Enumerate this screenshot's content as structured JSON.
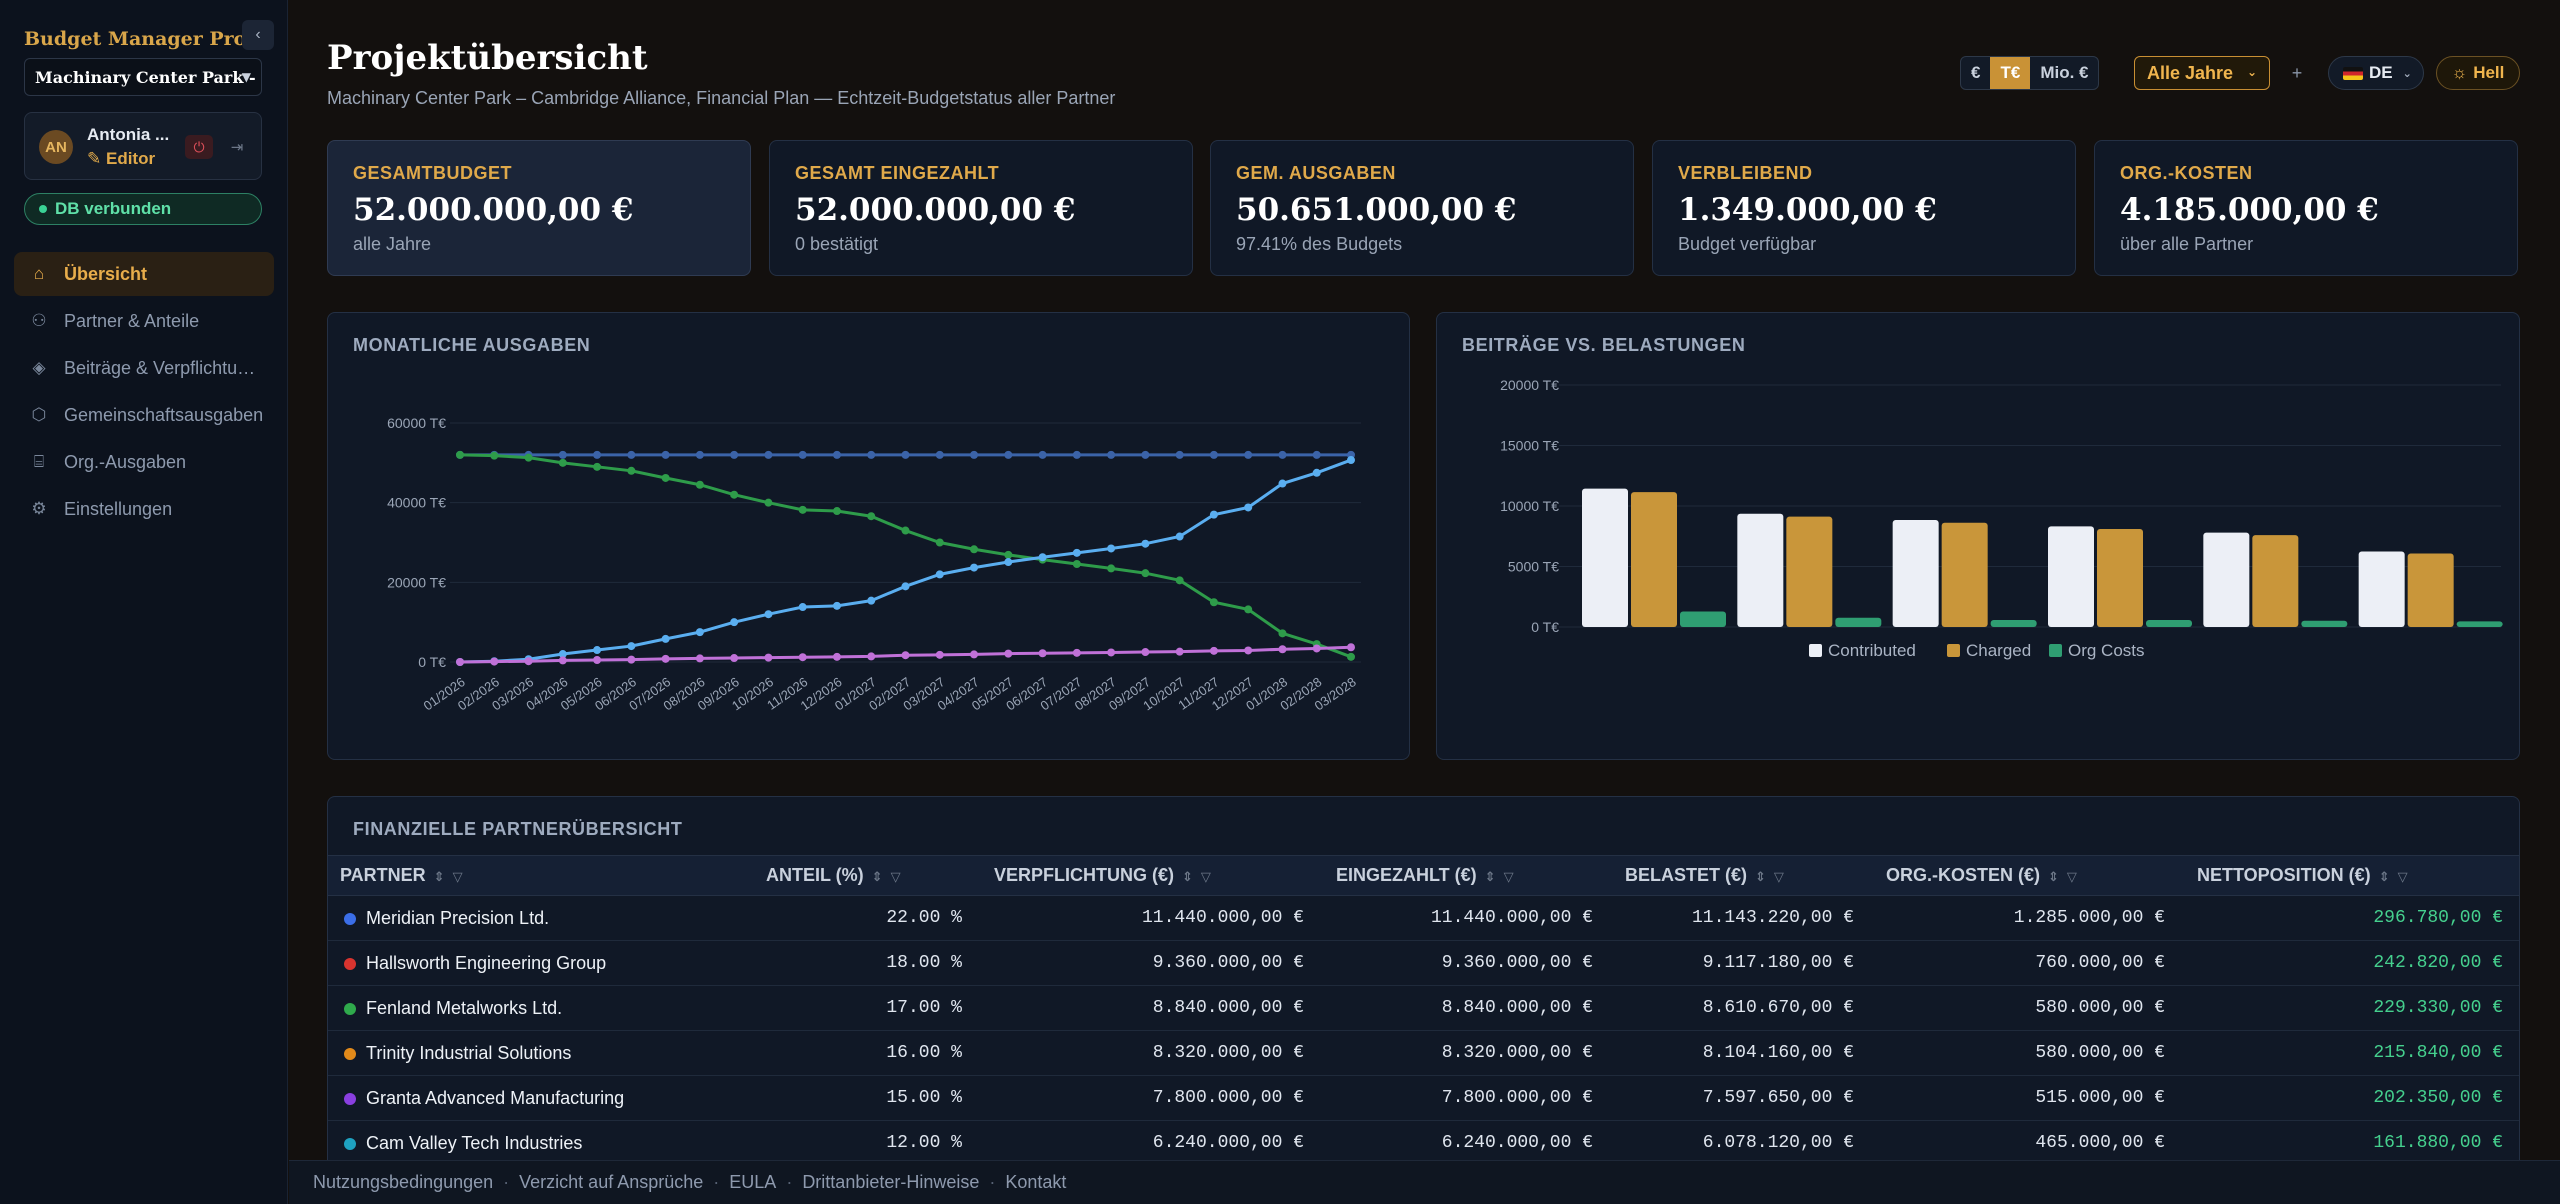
{
  "app": {
    "brand": "Budget Manager Pro",
    "collapse_icon": "chevron-left-icon"
  },
  "project": {
    "selected": "Machinary Center Park - Cambridge Alliance, Financial Plan"
  },
  "user": {
    "initials": "AN",
    "name": "Antonia ...",
    "role": "Editor",
    "role_icon": "pencil-icon"
  },
  "db": {
    "status": "DB verbunden"
  },
  "nav": [
    {
      "label": "Übersicht",
      "icon": "home-icon",
      "active": true
    },
    {
      "label": "Partner & Anteile",
      "icon": "users-icon",
      "active": false
    },
    {
      "label": "Beiträge & Verpflichtungen",
      "icon": "layers-icon",
      "active": false
    },
    {
      "label": "Gemeinschaftsausgaben",
      "icon": "hexagon-icon",
      "active": false
    },
    {
      "label": "Org.-Ausgaben",
      "icon": "building-icon",
      "active": false
    },
    {
      "label": "Einstellungen",
      "icon": "gear-icon",
      "active": false
    }
  ],
  "header": {
    "title": "Projektübersicht",
    "subtitle": "Machinary Center Park – Cambridge Alliance, Financial Plan — Echtzeit-Budgetstatus aller Partner"
  },
  "toolbar": {
    "units": [
      "€",
      "T€",
      "Mio. €"
    ],
    "active_unit": "T€",
    "year_select": "Alle Jahre",
    "plus": "+",
    "language": "DE",
    "theme": "Hell",
    "theme_icon": "sun-icon"
  },
  "kpis": [
    {
      "label": "GESAMTBUDGET",
      "value": "52.000.000,00 €",
      "sub": "alle Jahre"
    },
    {
      "label": "GESAMT EINGEZAHLT",
      "value": "52.000.000,00 €",
      "sub": "0 bestätigt"
    },
    {
      "label": "GEM. AUSGABEN",
      "value": "50.651.000,00 €",
      "sub": "97.41% des Budgets"
    },
    {
      "label": "VERBLEIBEND",
      "value": "1.349.000,00 €",
      "sub": "Budget verfügbar"
    },
    {
      "label": "ORG.-KOSTEN",
      "value": "4.185.000,00 €",
      "sub": "über alle Partner"
    }
  ],
  "colors": {
    "accent": "#e0a94a",
    "blue": "#5aaef0",
    "green": "#2e9c4a",
    "purple": "#c071d8",
    "contributed": "#eceff6",
    "charged": "#c9963a",
    "org": "#2f9e72"
  },
  "chart_data": [
    {
      "type": "line",
      "title": "MONATLICHE AUSGABEN",
      "unit": "T€",
      "ylim": [
        0,
        60000
      ],
      "yticks": [
        "0 T€",
        "20000 T€",
        "40000 T€",
        "60000 T€"
      ],
      "ytick_values": [
        0,
        20000,
        40000,
        60000
      ],
      "x": [
        "01/2026",
        "02/2026",
        "03/2026",
        "04/2026",
        "05/2026",
        "06/2026",
        "07/2026",
        "08/2026",
        "09/2026",
        "10/2026",
        "11/2026",
        "12/2026",
        "01/2027",
        "02/2027",
        "03/2027",
        "04/2027",
        "05/2027",
        "06/2027",
        "07/2027",
        "08/2027",
        "09/2027",
        "10/2027",
        "11/2027",
        "12/2027",
        "01/2028",
        "02/2028",
        "03/2028"
      ],
      "series": [
        {
          "color": "#3b63a8",
          "values": [
            52000,
            52000,
            52000,
            52000,
            52000,
            52000,
            52000,
            52000,
            52000,
            52000,
            52000,
            52000,
            52000,
            52000,
            52000,
            52000,
            52000,
            52000,
            52000,
            52000,
            52000,
            52000,
            52000,
            52000,
            52000,
            52000,
            52000
          ]
        },
        {
          "color": "#2e9c4a",
          "values": [
            52000,
            51800,
            51300,
            50000,
            49000,
            48000,
            46200,
            44500,
            42000,
            40000,
            38200,
            37900,
            36600,
            33000,
            30000,
            28300,
            26900,
            25700,
            24600,
            23500,
            22300,
            20500,
            15000,
            13200,
            7200,
            4500,
            1300
          ]
        },
        {
          "color": "#5aaef0",
          "values": [
            0,
            200,
            700,
            2000,
            3000,
            4000,
            5800,
            7500,
            10000,
            12000,
            13800,
            14100,
            15400,
            19000,
            22000,
            23700,
            25100,
            26300,
            27400,
            28500,
            29700,
            31500,
            37000,
            38800,
            44800,
            47500,
            50700
          ]
        },
        {
          "color": "#c071d8",
          "values": [
            0,
            100,
            200,
            400,
            500,
            600,
            800,
            900,
            1000,
            1100,
            1200,
            1300,
            1400,
            1700,
            1800,
            1900,
            2100,
            2200,
            2300,
            2400,
            2500,
            2600,
            2800,
            2900,
            3200,
            3400,
            3700
          ]
        }
      ]
    },
    {
      "type": "bar",
      "title": "BEITRÄGE VS. BELASTUNGEN",
      "unit": "T€",
      "ylim": [
        0,
        20000
      ],
      "yticks": [
        "0 T€",
        "5000 T€",
        "10000 T€",
        "15000 T€",
        "20000 T€"
      ],
      "ytick_values": [
        0,
        5000,
        10000,
        15000,
        20000
      ],
      "categories": [
        "Meridian Precision Ltd.",
        "Hallsworth Engineering Group",
        "Fenland Metalworks Ltd.",
        "Trinity Industrial Solutions",
        "Granta Advanced Manufacturing",
        "Cam Valley Tech Industries"
      ],
      "series": [
        {
          "name": "Contributed",
          "color": "#eceff6",
          "values": [
            11440,
            9360,
            8840,
            8320,
            7800,
            6240
          ]
        },
        {
          "name": "Charged",
          "color": "#c9963a",
          "values": [
            11143,
            9117,
            8611,
            8104,
            7598,
            6078
          ]
        },
        {
          "name": "Org Costs",
          "color": "#2f9e72",
          "values": [
            1285,
            760,
            580,
            580,
            515,
            465
          ]
        }
      ],
      "legend": "bottom"
    }
  ],
  "table": {
    "title": "FINANZIELLE PARTNERÜBERSICHT",
    "columns": [
      "PARTNER",
      "ANTEIL (%)",
      "VERPFLICHTUNG (€)",
      "EINGEZAHLT (€)",
      "BELASTET (€)",
      "ORG.-KOSTEN (€)",
      "NETTOPOSITION (€)"
    ],
    "rows": [
      {
        "color": "#3b6ee8",
        "partner": "Meridian Precision Ltd.",
        "share": "22.00 %",
        "commitment": "11.440.000,00 €",
        "paid": "11.440.000,00 €",
        "charged": "11.143.220,00 €",
        "org": "1.285.000,00 €",
        "net": "296.780,00 €"
      },
      {
        "color": "#d9342f",
        "partner": "Hallsworth Engineering Group",
        "share": "18.00 %",
        "commitment": "9.360.000,00 €",
        "paid": "9.360.000,00 €",
        "charged": "9.117.180,00 €",
        "org": "760.000,00 €",
        "net": "242.820,00 €"
      },
      {
        "color": "#2faa4c",
        "partner": "Fenland Metalworks Ltd.",
        "share": "17.00 %",
        "commitment": "8.840.000,00 €",
        "paid": "8.840.000,00 €",
        "charged": "8.610.670,00 €",
        "org": "580.000,00 €",
        "net": "229.330,00 €"
      },
      {
        "color": "#e28a1a",
        "partner": "Trinity Industrial Solutions",
        "share": "16.00 %",
        "commitment": "8.320.000,00 €",
        "paid": "8.320.000,00 €",
        "charged": "8.104.160,00 €",
        "org": "580.000,00 €",
        "net": "215.840,00 €"
      },
      {
        "color": "#8a3fe0",
        "partner": "Granta Advanced Manufacturing",
        "share": "15.00 %",
        "commitment": "7.800.000,00 €",
        "paid": "7.800.000,00 €",
        "charged": "7.597.650,00 €",
        "org": "515.000,00 €",
        "net": "202.350,00 €"
      },
      {
        "color": "#1ea1c0",
        "partner": "Cam Valley Tech Industries",
        "share": "12.00 %",
        "commitment": "6.240.000,00 €",
        "paid": "6.240.000,00 €",
        "charged": "6.078.120,00 €",
        "org": "465.000,00 €",
        "net": "161.880,00 €"
      }
    ]
  },
  "footer": {
    "links": [
      "Nutzungsbedingungen",
      "Verzicht auf Ansprüche",
      "EULA",
      "Drittanbieter-Hinweise",
      "Kontakt"
    ]
  }
}
